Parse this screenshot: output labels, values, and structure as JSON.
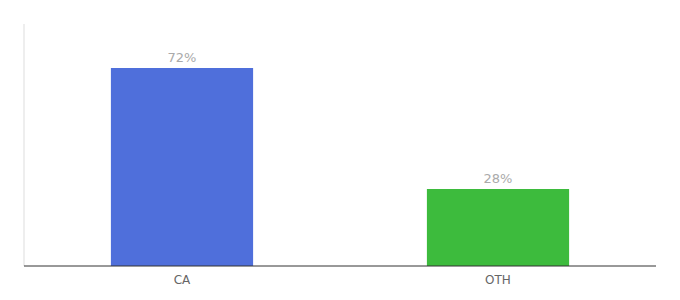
{
  "chart_data": {
    "type": "bar",
    "categories": [
      "CA",
      "OTH"
    ],
    "values": [
      72,
      28
    ],
    "value_labels": [
      "72%",
      "28%"
    ],
    "colors": [
      "#4f6fdb",
      "#3dbb3d"
    ],
    "ylim": [
      0,
      88
    ],
    "yticks": [],
    "data_labels": true,
    "tick_labels": "x"
  }
}
